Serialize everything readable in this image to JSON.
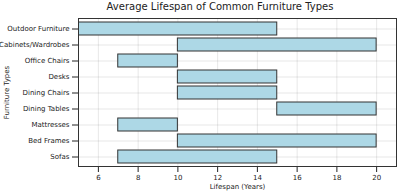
{
  "chart_data": {
    "type": "bar",
    "orientation": "horizontal",
    "title": "Average Lifespan of Common Furniture Types",
    "x_label": "Lifespan (Years)",
    "y_label": "Furniture Types",
    "categories": [
      "Outdoor Furniture",
      "Cabinets/Wardrobes",
      "Office Chairs",
      "Desks",
      "Dining Chairs",
      "Dining Tables",
      "Mattresses",
      "Bed Frames",
      "Sofas"
    ],
    "start": [
      5,
      10,
      7,
      10,
      10,
      15,
      7,
      10,
      7
    ],
    "end": [
      15,
      20,
      10,
      15,
      15,
      20,
      10,
      20,
      15
    ],
    "color": "#add8e6",
    "xlim": [
      5,
      21
    ],
    "xticks": [
      6,
      8,
      10,
      12,
      14,
      16,
      18,
      20
    ],
    "grid": true
  }
}
